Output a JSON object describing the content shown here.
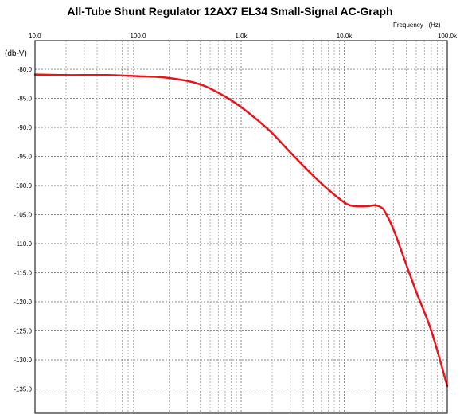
{
  "chart_data": {
    "type": "line",
    "title": "All-Tube Shunt Regulator 12AX7 EL34 Small-Signal AC-Graph",
    "xlabel": "Frequency   (Hz)",
    "ylabel": "(db-V)",
    "x_scale": "log",
    "xlim": [
      10,
      100000
    ],
    "ylim": [
      -80,
      -137.5
    ],
    "grid": true,
    "x_ticks": [
      {
        "value": 10,
        "label": "10.0"
      },
      {
        "value": 100,
        "label": "100.0"
      },
      {
        "value": 1000,
        "label": "1.0k"
      },
      {
        "value": 10000,
        "label": "10.0k"
      },
      {
        "value": 100000,
        "label": "100.0k"
      }
    ],
    "y_ticks": [
      {
        "value": -80,
        "label": "-80.0"
      },
      {
        "value": -85,
        "label": "-85.0"
      },
      {
        "value": -90,
        "label": "-90.0"
      },
      {
        "value": -95,
        "label": "-95.0"
      },
      {
        "value": -100,
        "label": "-100.0"
      },
      {
        "value": -105,
        "label": "-105.0"
      },
      {
        "value": -110,
        "label": "-110.0"
      },
      {
        "value": -115,
        "label": "-115.0"
      },
      {
        "value": -120,
        "label": "-120.0"
      },
      {
        "value": -125,
        "label": "-125.0"
      },
      {
        "value": -130,
        "label": "-130.0"
      },
      {
        "value": -135,
        "label": "-135.0"
      }
    ],
    "series": [
      {
        "color": "#e8141c",
        "x": [
          10,
          20,
          50,
          100,
          150,
          200,
          300,
          400,
          500,
          700,
          1000,
          1500,
          2000,
          3000,
          4000,
          5000,
          7000,
          10000,
          12000,
          15000,
          18000,
          20000,
          23000,
          25000,
          30000,
          40000,
          50000,
          70000,
          100000
        ],
        "y": [
          -80.9,
          -81.0,
          -81.0,
          -81.2,
          -81.3,
          -81.5,
          -82.0,
          -82.6,
          -83.3,
          -84.7,
          -86.5,
          -89.0,
          -91.0,
          -94.3,
          -96.6,
          -98.3,
          -100.7,
          -102.9,
          -103.5,
          -103.6,
          -103.5,
          -103.4,
          -103.8,
          -104.6,
          -107.5,
          -113.6,
          -118.3,
          -125.0,
          -134.5
        ]
      }
    ]
  }
}
